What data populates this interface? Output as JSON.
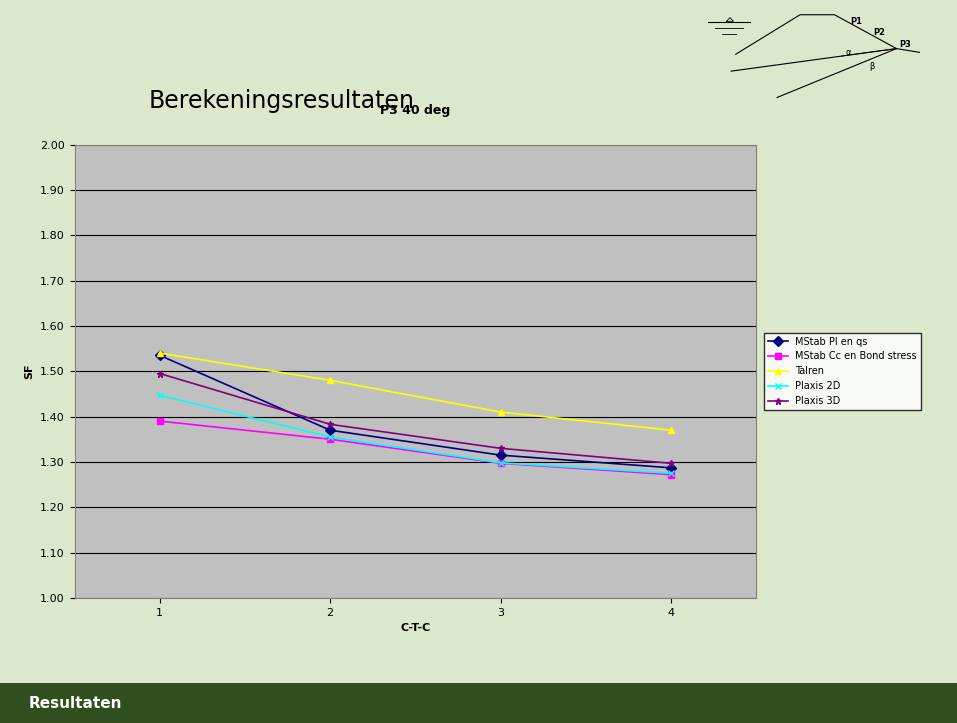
{
  "chart_data": {
    "type": "line",
    "title": "P3 40 deg",
    "x_label": "C-T-C",
    "y_label": "SF",
    "categories": [
      "1",
      "2",
      "3",
      "4"
    ],
    "series": [
      {
        "name": "MStab Pl en qs",
        "color": "#000080",
        "marker": "diamond",
        "line_style": "solid",
        "values": [
          1.535,
          1.37,
          1.315,
          1.287
        ]
      },
      {
        "name": "MStab Cc en Bond stress",
        "color": "#ff00ff",
        "marker": "square",
        "line_style": "solid",
        "values": [
          1.39,
          1.35,
          1.297,
          1.272
        ]
      },
      {
        "name": "Talren",
        "color": "#ffff00",
        "marker": "triangle",
        "line_style": "solid",
        "values": [
          1.54,
          1.48,
          1.41,
          1.37
        ]
      },
      {
        "name": "Plaxis 2D",
        "color": "#00ffff",
        "marker": "x",
        "line_style": "solid",
        "values": [
          1.447,
          1.355,
          1.298,
          1.275
        ]
      },
      {
        "name": "Plaxis 3D",
        "color": "#800080",
        "marker": "star",
        "line_style": "solid",
        "values": [
          1.495,
          1.383,
          1.33,
          1.297
        ]
      }
    ],
    "ylim": [
      1.0,
      2.0
    ],
    "yticks": [
      {
        "value": 1.0,
        "label": "1.00"
      },
      {
        "value": 1.1,
        "label": "1.10"
      },
      {
        "value": 1.2,
        "label": "1.20"
      },
      {
        "value": 1.3,
        "label": "1.30"
      },
      {
        "value": 1.4,
        "label": "1.40"
      },
      {
        "value": 1.5,
        "label": "1.50"
      },
      {
        "value": 1.6,
        "label": "1.60"
      },
      {
        "value": 1.7,
        "label": "1.70"
      },
      {
        "value": 1.8,
        "label": "1.80"
      },
      {
        "value": 1.9,
        "label": "1.90"
      },
      {
        "value": 2.0,
        "label": "2.00"
      }
    ],
    "grid": true,
    "legend": "right"
  },
  "slide": {
    "heading": "Berekeningsresultaten",
    "footer": "Resultaten",
    "diagram_labels": [
      "P1",
      "P2",
      "P3",
      "α",
      "β"
    ]
  }
}
